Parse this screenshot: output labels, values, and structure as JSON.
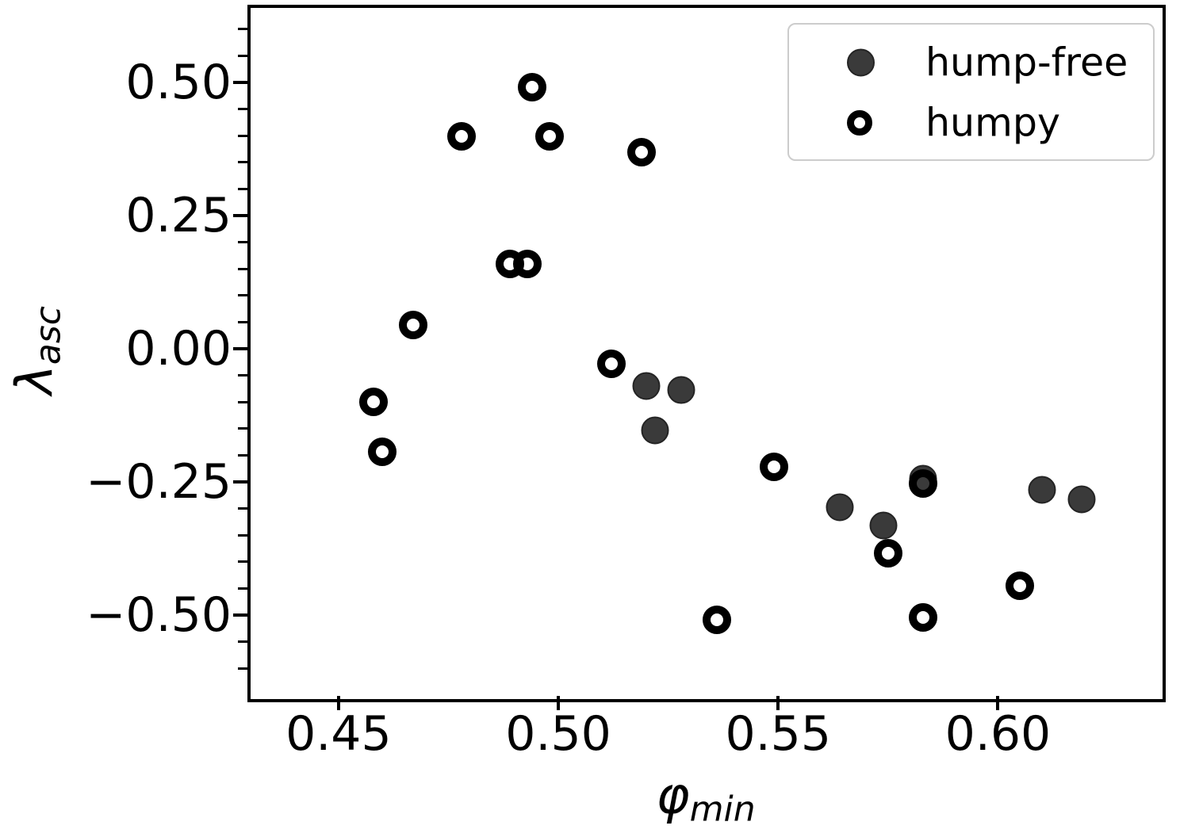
{
  "chart_data": {
    "type": "scatter",
    "title": "",
    "xlabel_symbol": "φ",
    "xlabel_sub": "min",
    "ylabel_symbol": "λ",
    "ylabel_sub": "asc",
    "xlim": [
      0.43,
      0.636
    ],
    "ylim": [
      -0.646,
      0.64
    ],
    "x_ticks": [
      0.45,
      0.5,
      0.55,
      0.6
    ],
    "x_tick_labels": [
      "0.45",
      "0.50",
      "0.55",
      "0.60"
    ],
    "y_ticks": [
      0.5,
      0.25,
      0.0,
      -0.25,
      -0.5
    ],
    "y_tick_labels": [
      "0.50",
      "0.25",
      "0.00",
      "−0.25",
      "−0.50"
    ],
    "y_minor_step": 0.05,
    "grid": false,
    "legend_position": "upper right",
    "colors": {
      "hump_free_fill": "#3a3a3a",
      "hump_free_edge": "#242424",
      "humpy_ring": "#000000",
      "axis": "#000000",
      "legend_border": "#cccccc"
    },
    "series": [
      {
        "name": "hump-free",
        "marker": "filled-circle",
        "points": [
          [
            0.52,
            -0.07
          ],
          [
            0.528,
            -0.077
          ],
          [
            0.522,
            -0.153
          ],
          [
            0.564,
            -0.298
          ],
          [
            0.574,
            -0.332
          ],
          [
            0.583,
            -0.244
          ],
          [
            0.61,
            -0.265
          ],
          [
            0.619,
            -0.283
          ]
        ]
      },
      {
        "name": "humpy",
        "marker": "open-circle",
        "points": [
          [
            0.494,
            0.491
          ],
          [
            0.478,
            0.399
          ],
          [
            0.498,
            0.399
          ],
          [
            0.519,
            0.369
          ],
          [
            0.489,
            0.159
          ],
          [
            0.493,
            0.159
          ],
          [
            0.467,
            0.045
          ],
          [
            0.512,
            -0.028
          ],
          [
            0.458,
            -0.1
          ],
          [
            0.46,
            -0.193
          ],
          [
            0.549,
            -0.222
          ],
          [
            0.583,
            -0.253
          ],
          [
            0.575,
            -0.384
          ],
          [
            0.536,
            -0.509
          ],
          [
            0.583,
            -0.504
          ],
          [
            0.605,
            -0.445
          ]
        ]
      }
    ]
  }
}
